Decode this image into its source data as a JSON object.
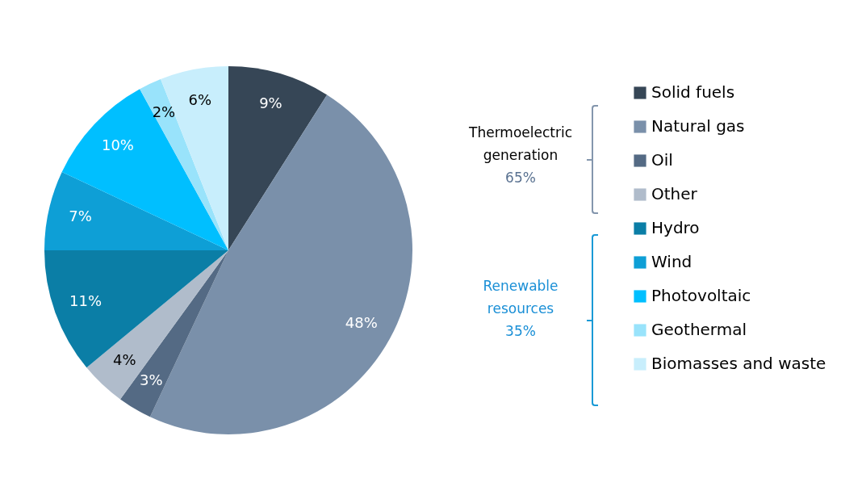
{
  "chart_data": {
    "type": "pie",
    "categories": [
      "Solid fuels",
      "Natural gas",
      "Oil",
      "Other",
      "Hydro",
      "Wind",
      "Photovoltaic",
      "Geothermal",
      "Biomasses and waste"
    ],
    "values": [
      9,
      48,
      3,
      4,
      11,
      7,
      10,
      2,
      6
    ],
    "colors": [
      "#364656",
      "#7a90aa",
      "#546a84",
      "#b0bccb",
      "#0b7ea6",
      "#0e9fd6",
      "#00bfff",
      "#99e3fb",
      "#c8eefc"
    ],
    "value_labels": [
      "9%",
      "48%",
      "3%",
      "4%",
      "11%",
      "7%",
      "10%",
      "2%",
      "6%"
    ],
    "legend": "right",
    "annotations": [
      "Thermoelectric generation 65%",
      "Renewable resources 35%"
    ]
  }
}
